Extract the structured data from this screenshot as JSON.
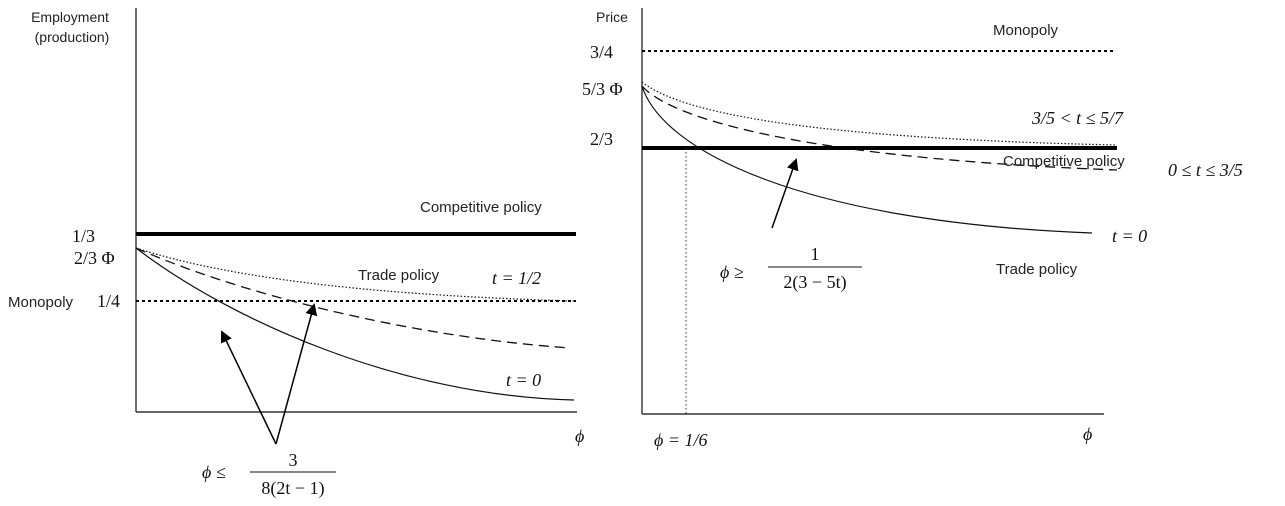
{
  "left_panel": {
    "y_axis_title_line1": "Employment",
    "y_axis_title_line2": "(production)",
    "tick_one_third": "1/3",
    "tick_two_thirds_phi": "2/3 Φ",
    "monopoly_label": "Monopoly",
    "tick_one_quarter": "1/4",
    "competitive_label": "Competitive policy",
    "trade_label": "Trade policy",
    "t_half_label": "t = 1/2",
    "t_zero_label": "t = 0",
    "x_axis_label": "ϕ",
    "condition_lhs": "ϕ ≤",
    "condition_num": "3",
    "condition_den": "8(2t − 1)"
  },
  "right_panel": {
    "y_axis_title": "Price",
    "monopoly_label": "Monopoly",
    "tick_three_quarters": "3/4",
    "tick_five_thirds_phi": "5/3 Φ",
    "tick_two_thirds": "2/3",
    "range_high_label": "3/5 < t ≤ 5/7",
    "competitive_label": "Competitive policy",
    "range_low_label": "0 ≤ t ≤ 3/5",
    "t_zero_label": "t = 0",
    "trade_label": "Trade policy",
    "condition_lhs": "ϕ ≥",
    "condition_num": "1",
    "condition_den": "2(3 − 5t)",
    "phi_value_label": "ϕ = 1/6",
    "x_axis_label": "ϕ"
  }
}
